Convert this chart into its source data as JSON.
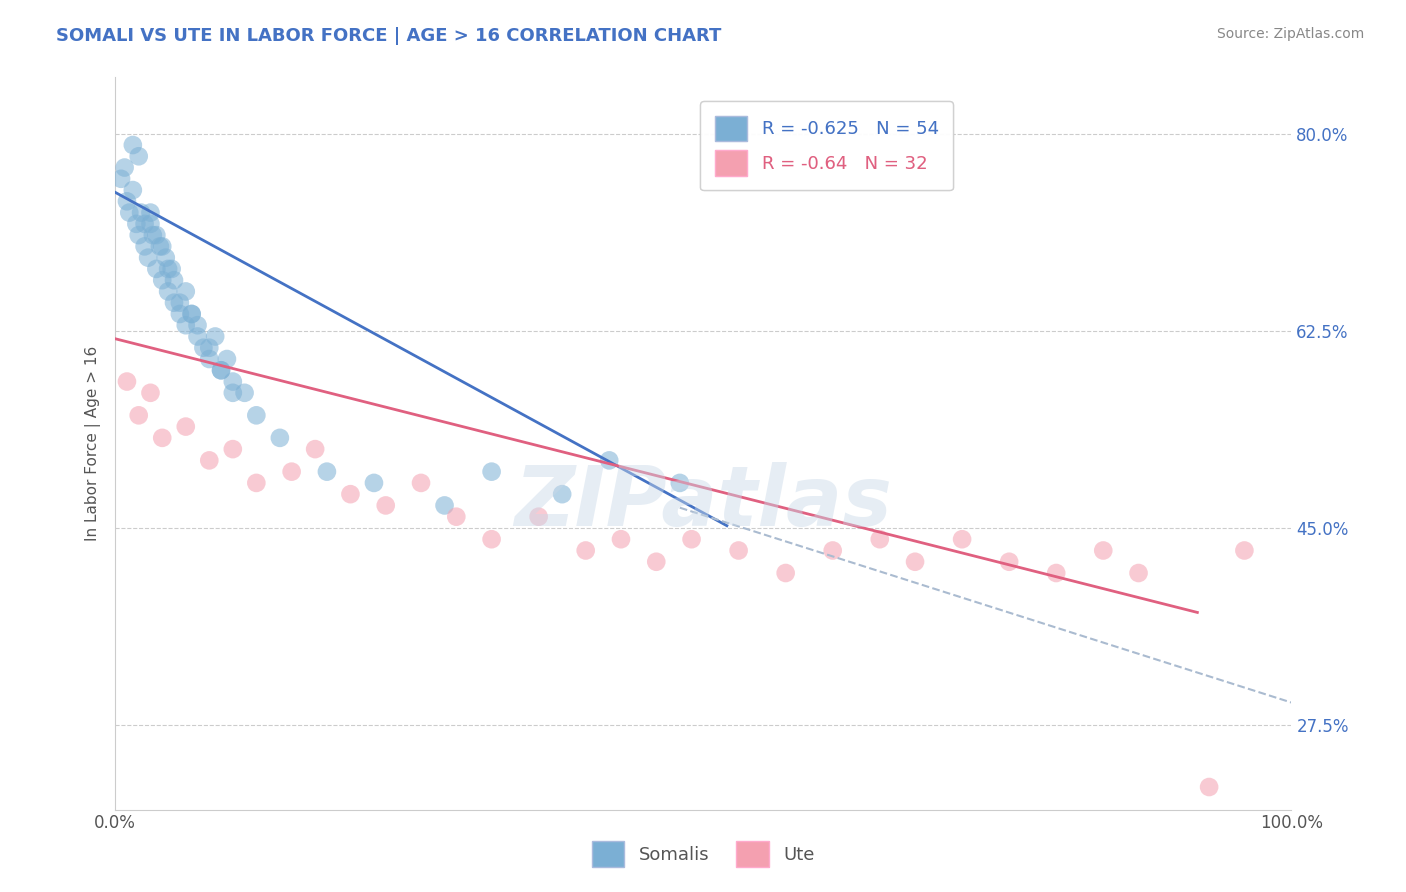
{
  "title": "SOMALI VS UTE IN LABOR FORCE | AGE > 16 CORRELATION CHART",
  "source_text": "Source: ZipAtlas.com",
  "ylabel": "In Labor Force | Age > 16",
  "xlim": [
    0.0,
    1.0
  ],
  "ylim": [
    0.2,
    0.85
  ],
  "yticks": [
    0.275,
    0.45,
    0.625,
    0.8
  ],
  "ytick_labels": [
    "27.5%",
    "45.0%",
    "62.5%",
    "80.0%"
  ],
  "xtick_labels": [
    "0.0%",
    "100.0%"
  ],
  "somali_R": -0.625,
  "somali_N": 54,
  "ute_R": -0.64,
  "ute_N": 32,
  "somali_color": "#7BAFD4",
  "ute_color": "#F4A0B0",
  "somali_line_color": "#4472C4",
  "ute_line_color": "#E06080",
  "dashed_line_color": "#AABBD0",
  "background_color": "#FFFFFF",
  "grid_color": "#CCCCCC",
  "title_color": "#4472C4",
  "watermark_text": "ZIPatlas",
  "legend_entries": [
    "Somalis",
    "Ute"
  ],
  "somali_scatter_x": [
    0.005,
    0.008,
    0.01,
    0.012,
    0.015,
    0.018,
    0.02,
    0.022,
    0.025,
    0.028,
    0.03,
    0.032,
    0.035,
    0.038,
    0.04,
    0.043,
    0.045,
    0.048,
    0.05,
    0.055,
    0.06,
    0.065,
    0.07,
    0.075,
    0.08,
    0.085,
    0.09,
    0.095,
    0.1,
    0.11,
    0.015,
    0.02,
    0.025,
    0.03,
    0.035,
    0.04,
    0.045,
    0.05,
    0.055,
    0.06,
    0.065,
    0.07,
    0.08,
    0.09,
    0.1,
    0.12,
    0.14,
    0.18,
    0.22,
    0.28,
    0.32,
    0.38,
    0.42,
    0.48
  ],
  "somali_scatter_y": [
    0.76,
    0.77,
    0.74,
    0.73,
    0.75,
    0.72,
    0.71,
    0.73,
    0.7,
    0.69,
    0.72,
    0.71,
    0.68,
    0.7,
    0.67,
    0.69,
    0.66,
    0.68,
    0.65,
    0.64,
    0.63,
    0.64,
    0.62,
    0.61,
    0.6,
    0.62,
    0.59,
    0.6,
    0.58,
    0.57,
    0.79,
    0.78,
    0.72,
    0.73,
    0.71,
    0.7,
    0.68,
    0.67,
    0.65,
    0.66,
    0.64,
    0.63,
    0.61,
    0.59,
    0.57,
    0.55,
    0.53,
    0.5,
    0.49,
    0.47,
    0.5,
    0.48,
    0.51,
    0.49
  ],
  "ute_scatter_x": [
    0.01,
    0.02,
    0.03,
    0.04,
    0.06,
    0.08,
    0.1,
    0.12,
    0.15,
    0.17,
    0.2,
    0.23,
    0.26,
    0.29,
    0.32,
    0.36,
    0.4,
    0.43,
    0.46,
    0.49,
    0.53,
    0.57,
    0.61,
    0.65,
    0.68,
    0.72,
    0.76,
    0.8,
    0.84,
    0.87,
    0.93,
    0.96
  ],
  "ute_scatter_y": [
    0.58,
    0.55,
    0.57,
    0.53,
    0.54,
    0.51,
    0.52,
    0.49,
    0.5,
    0.52,
    0.48,
    0.47,
    0.49,
    0.46,
    0.44,
    0.46,
    0.43,
    0.44,
    0.42,
    0.44,
    0.43,
    0.41,
    0.43,
    0.44,
    0.42,
    0.44,
    0.42,
    0.41,
    0.43,
    0.41,
    0.22,
    0.43
  ],
  "somali_line_x": [
    0.0,
    0.52
  ],
  "somali_line_y": [
    0.748,
    0.452
  ],
  "ute_line_x": [
    0.0,
    0.92
  ],
  "ute_line_y": [
    0.618,
    0.375
  ],
  "dashed_line_x": [
    0.48,
    1.0
  ],
  "dashed_line_y": [
    0.468,
    0.295
  ]
}
